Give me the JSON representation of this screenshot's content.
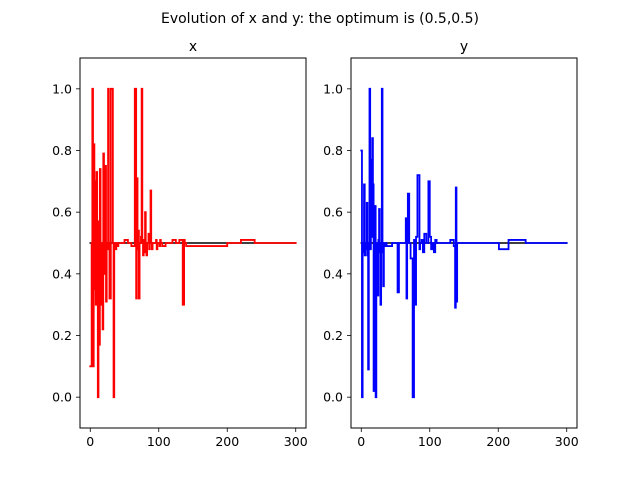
{
  "suptitle": "Evolution of x and y: the optimum is (0.5,0.5)",
  "chart_data": [
    {
      "type": "line",
      "title": "x",
      "xlim": [
        -15,
        315
      ],
      "ylim": [
        -0.1,
        1.1
      ],
      "xticks": [
        0,
        100,
        200,
        300
      ],
      "yticks": [
        0.0,
        0.2,
        0.4,
        0.6,
        0.8,
        1.0
      ],
      "grid": false,
      "series": [
        {
          "color": "#000000",
          "x": [
            0,
            300
          ],
          "y": [
            0.5,
            0.5
          ]
        },
        {
          "color": "#ff0000",
          "x": [
            0,
            2,
            3,
            4,
            5,
            6,
            7,
            8,
            9,
            10,
            11,
            12,
            13,
            14,
            15,
            16,
            17,
            18,
            19,
            20,
            21,
            22,
            23,
            24,
            25,
            26,
            27,
            28,
            30,
            33,
            34,
            35,
            36,
            37,
            38,
            39,
            40,
            41,
            45,
            50,
            55,
            60,
            65,
            67,
            68,
            69,
            70,
            71,
            72,
            73,
            74,
            75,
            76,
            77,
            78,
            79,
            80,
            81,
            82,
            83,
            84,
            85,
            86,
            87,
            88,
            89,
            90,
            91,
            92,
            93,
            95,
            96,
            97,
            98,
            100,
            101,
            102,
            103,
            105,
            110,
            115,
            120,
            125,
            130,
            135,
            137,
            138,
            140,
            150,
            160,
            180,
            200,
            210,
            220,
            240,
            260,
            280,
            300
          ],
          "y": [
            0.1,
            0.5,
            1.0,
            0.1,
            0.82,
            0.35,
            0.7,
            0.3,
            0.73,
            0.35,
            0.0,
            0.57,
            0.17,
            0.74,
            0.5,
            0.3,
            0.5,
            0.22,
            0.79,
            0.4,
            0.5,
            0.75,
            0.31,
            0.5,
            0.48,
            1.0,
            0.5,
            0.32,
            1.0,
            0.5,
            0.0,
            0.49,
            0.5,
            0.48,
            0.5,
            0.5,
            0.49,
            0.5,
            0.5,
            0.51,
            0.5,
            0.49,
            1.0,
            0.32,
            0.71,
            0.48,
            0.54,
            0.32,
            0.5,
            0.5,
            0.52,
            1.0,
            0.5,
            0.46,
            0.51,
            0.47,
            0.6,
            0.5,
            0.46,
            0.5,
            0.5,
            0.53,
            0.48,
            0.5,
            0.67,
            0.5,
            0.48,
            0.5,
            0.5,
            0.5,
            0.5,
            0.51,
            0.48,
            0.5,
            0.5,
            0.49,
            0.51,
            0.5,
            0.49,
            0.5,
            0.5,
            0.51,
            0.5,
            0.51,
            0.3,
            0.51,
            0.5,
            0.49,
            0.49,
            0.49,
            0.49,
            0.5,
            0.5,
            0.51,
            0.5,
            0.5,
            0.5,
            0.5
          ]
        }
      ]
    },
    {
      "type": "line",
      "title": "y",
      "xlim": [
        -15,
        315
      ],
      "ylim": [
        -0.1,
        1.1
      ],
      "xticks": [
        0,
        100,
        200,
        300
      ],
      "yticks": [
        0.0,
        0.2,
        0.4,
        0.6,
        0.8,
        1.0
      ],
      "grid": false,
      "series": [
        {
          "color": "#000000",
          "x": [
            0,
            300
          ],
          "y": [
            0.5,
            0.5
          ]
        },
        {
          "color": "#0000ff",
          "x": [
            0,
            1,
            2,
            3,
            4,
            5,
            6,
            7,
            8,
            9,
            10,
            11,
            12,
            13,
            14,
            15,
            16,
            17,
            18,
            19,
            20,
            21,
            22,
            23,
            24,
            25,
            26,
            27,
            28,
            29,
            30,
            31,
            32,
            33,
            34,
            35,
            36,
            37,
            40,
            45,
            50,
            53,
            55,
            60,
            65,
            66,
            67,
            68,
            70,
            72,
            75,
            77,
            78,
            80,
            82,
            85,
            86,
            88,
            90,
            92,
            95,
            98,
            100,
            102,
            104,
            106,
            108,
            110,
            115,
            120,
            125,
            130,
            135,
            137,
            138,
            139,
            140,
            141,
            142,
            143,
            150,
            160,
            170,
            180,
            190,
            200,
            201,
            205,
            210,
            215,
            220,
            230,
            240,
            250,
            260,
            270,
            280,
            290,
            300
          ],
          "y": [
            0.8,
            0.0,
            0.5,
            0.47,
            0.69,
            0.46,
            0.5,
            0.48,
            0.63,
            0.46,
            0.09,
            0.5,
            1.0,
            0.48,
            0.77,
            0.52,
            0.84,
            0.69,
            0.02,
            0.5,
            0.62,
            0.0,
            0.49,
            0.5,
            0.33,
            0.51,
            0.61,
            0.47,
            0.3,
            0.5,
            1.0,
            0.47,
            0.36,
            0.5,
            0.49,
            0.5,
            0.5,
            0.49,
            0.49,
            0.5,
            0.5,
            0.34,
            0.5,
            0.5,
            0.58,
            0.32,
            0.5,
            0.66,
            0.5,
            0.45,
            0.0,
            0.51,
            0.3,
            0.52,
            0.72,
            0.48,
            0.5,
            0.51,
            0.47,
            0.53,
            0.5,
            0.7,
            0.52,
            0.48,
            0.5,
            0.47,
            0.51,
            0.5,
            0.5,
            0.5,
            0.5,
            0.51,
            0.49,
            0.29,
            0.68,
            0.31,
            0.5,
            0.5,
            0.5,
            0.5,
            0.5,
            0.5,
            0.5,
            0.5,
            0.5,
            0.5,
            0.48,
            0.48,
            0.48,
            0.51,
            0.51,
            0.51,
            0.5,
            0.5,
            0.5,
            0.5,
            0.5,
            0.5,
            0.5
          ]
        }
      ]
    }
  ]
}
